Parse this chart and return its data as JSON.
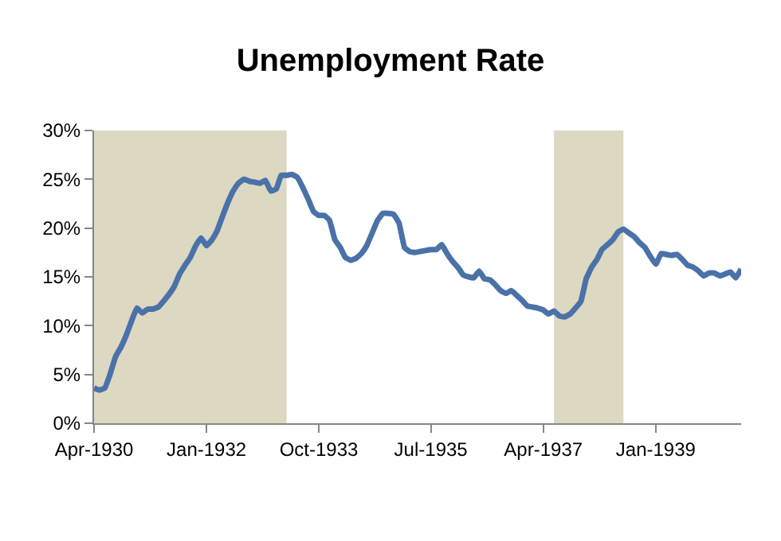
{
  "chart_data": {
    "type": "line",
    "title": "Unemployment Rate",
    "x": [
      "1930-04",
      "1930-05",
      "1930-06",
      "1930-07",
      "1930-08",
      "1930-09",
      "1930-10",
      "1930-11",
      "1930-12",
      "1931-01",
      "1931-02",
      "1931-03",
      "1931-04",
      "1931-05",
      "1931-06",
      "1931-07",
      "1931-08",
      "1931-09",
      "1931-10",
      "1931-11",
      "1931-12",
      "1932-01",
      "1932-02",
      "1932-03",
      "1932-04",
      "1932-05",
      "1932-06",
      "1932-07",
      "1932-08",
      "1932-09",
      "1932-10",
      "1932-11",
      "1932-12",
      "1933-01",
      "1933-02",
      "1933-03",
      "1933-04",
      "1933-05",
      "1933-06",
      "1933-07",
      "1933-08",
      "1933-09",
      "1933-10",
      "1933-11",
      "1933-12",
      "1934-01",
      "1934-02",
      "1934-03",
      "1934-04",
      "1934-05",
      "1934-06",
      "1934-07",
      "1934-08",
      "1934-09",
      "1934-10",
      "1934-11",
      "1934-12",
      "1935-01",
      "1935-02",
      "1935-03",
      "1935-04",
      "1935-05",
      "1935-06",
      "1935-07",
      "1935-08",
      "1935-09",
      "1935-10",
      "1935-11",
      "1935-12",
      "1936-01",
      "1936-02",
      "1936-03",
      "1936-04",
      "1936-05",
      "1936-06",
      "1936-07",
      "1936-08",
      "1936-09",
      "1936-10",
      "1936-11",
      "1936-12",
      "1937-01",
      "1937-02",
      "1937-03",
      "1937-04",
      "1937-05",
      "1937-06",
      "1937-07",
      "1937-08",
      "1937-09",
      "1937-10",
      "1937-11",
      "1937-12",
      "1938-01",
      "1938-02",
      "1938-03",
      "1938-04",
      "1938-05",
      "1938-06",
      "1938-07",
      "1938-08",
      "1938-09",
      "1938-10",
      "1938-11",
      "1938-12",
      "1939-01",
      "1939-02",
      "1939-03",
      "1939-04",
      "1939-05",
      "1939-06",
      "1939-07",
      "1939-08",
      "1939-09",
      "1939-10",
      "1939-11",
      "1939-12",
      "1940-01",
      "1940-02",
      "1940-03",
      "1940-04",
      "1940-05"
    ],
    "series": [
      {
        "color": "#4a72a8",
        "values": [
          3.6,
          3.4,
          3.6,
          5.0,
          6.8,
          7.8,
          9.0,
          10.5,
          11.8,
          11.3,
          11.7,
          11.7,
          11.9,
          12.5,
          13.2,
          14.0,
          15.3,
          16.2,
          17.0,
          18.2,
          19.0,
          18.2,
          18.8,
          19.7,
          21.2,
          22.6,
          23.8,
          24.6,
          25.0,
          24.8,
          24.7,
          24.6,
          24.9,
          23.8,
          24.0,
          25.4,
          25.4,
          25.5,
          25.2,
          24.2,
          23.0,
          21.7,
          21.3,
          21.3,
          20.8,
          18.8,
          18.0,
          17.0,
          16.7,
          16.9,
          17.4,
          18.2,
          19.5,
          20.8,
          21.5,
          21.5,
          21.4,
          20.5,
          18.0,
          17.6,
          17.5,
          17.6,
          17.7,
          17.8,
          17.8,
          18.3,
          17.4,
          16.6,
          16.0,
          15.2,
          15.0,
          14.9,
          15.6,
          14.8,
          14.7,
          14.2,
          13.6,
          13.3,
          13.6,
          13.1,
          12.6,
          12.0,
          11.9,
          11.8,
          11.6,
          11.2,
          11.5,
          11.0,
          10.9,
          11.2,
          11.8,
          12.5,
          14.8,
          16.0,
          16.8,
          17.8,
          18.3,
          18.8,
          19.6,
          19.9,
          19.5,
          19.1,
          18.5,
          18.0,
          17.1,
          16.3,
          17.4,
          17.3,
          17.2,
          17.3,
          16.8,
          16.2,
          16.0,
          15.6,
          15.1,
          15.4,
          15.4,
          15.1,
          15.3,
          15.5,
          14.9,
          15.8
        ]
      }
    ],
    "xlim": [
      "1930-04",
      "1940-05"
    ],
    "xticks": [
      {
        "value": "1930-04",
        "label": "Apr-1930"
      },
      {
        "value": "1932-01",
        "label": "Jan-1932"
      },
      {
        "value": "1933-10",
        "label": "Oct-1933"
      },
      {
        "value": "1935-07",
        "label": "Jul-1935"
      },
      {
        "value": "1937-04",
        "label": "Apr-1937"
      },
      {
        "value": "1939-01",
        "label": "Jan-1939"
      }
    ],
    "ylim": [
      0,
      30
    ],
    "yticks": [
      {
        "value": 0,
        "label": "0%"
      },
      {
        "value": 5,
        "label": "5%"
      },
      {
        "value": 10,
        "label": "10%"
      },
      {
        "value": 15,
        "label": "15%"
      },
      {
        "value": 20,
        "label": "20%"
      },
      {
        "value": 25,
        "label": "25%"
      },
      {
        "value": 30,
        "label": "30%"
      }
    ],
    "bands": [
      {
        "axis": "x",
        "from": "1930-04",
        "to": "1933-04",
        "color": "#ddd8c2"
      },
      {
        "axis": "x",
        "from": "1937-06",
        "to": "1938-07",
        "color": "#ddd8c2"
      }
    ],
    "grid": false,
    "marker": "none",
    "line_style": "solid"
  }
}
